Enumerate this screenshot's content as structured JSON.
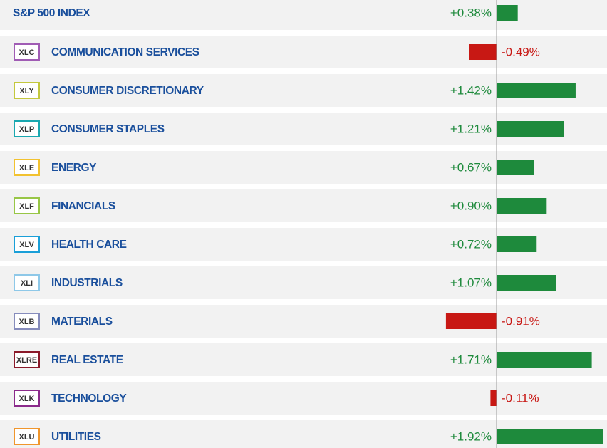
{
  "chart_data": {
    "type": "bar",
    "categories": [
      "S&P 500 INDEX",
      "COMMUNICATION SERVICES",
      "CONSUMER DISCRETIONARY",
      "CONSUMER STAPLES",
      "ENERGY",
      "FINANCIALS",
      "HEALTH CARE",
      "INDUSTRIALS",
      "MATERIALS",
      "REAL ESTATE",
      "TECHNOLOGY",
      "UTILITIES"
    ],
    "tickers": [
      null,
      "XLC",
      "XLY",
      "XLP",
      "XLE",
      "XLF",
      "XLV",
      "XLI",
      "XLB",
      "XLRE",
      "XLK",
      "XLU"
    ],
    "ticker_colors": [
      null,
      "#a05cb4",
      "#c4c83e",
      "#1aa8b0",
      "#f2c230",
      "#98c646",
      "#1a9fd8",
      "#8ec8e8",
      "#868cbc",
      "#8b1a2a",
      "#8b2a8b",
      "#f0962c"
    ],
    "values": [
      0.38,
      -0.49,
      1.42,
      1.21,
      0.67,
      0.9,
      0.72,
      1.07,
      -0.91,
      1.71,
      -0.11,
      1.92
    ],
    "value_labels": [
      "+0.38%",
      "-0.49%",
      "+1.42%",
      "+1.21%",
      "+0.67%",
      "+0.90%",
      "+0.72%",
      "+1.07%",
      "-0.91%",
      "+1.71%",
      "-0.11%",
      "+1.92%"
    ],
    "positive_color": "#1e8a3c",
    "negative_color": "#c81814"
  }
}
